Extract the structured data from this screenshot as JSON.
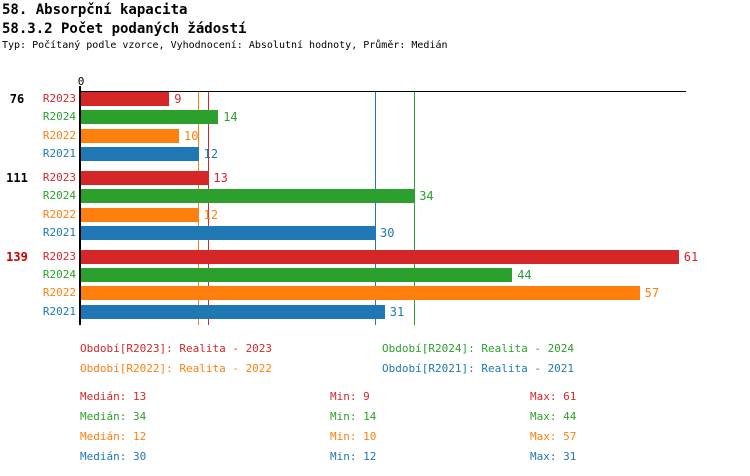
{
  "header": {
    "title1": "58. Absorpční kapacita",
    "title2": "58.3.2 Počet podaných žádostí",
    "subtitle": "Typ: Počítaný podle vzorce, Vyhodnocení: Absolutní hodnoty, Průměr: Medián"
  },
  "chart_data": {
    "type": "bar",
    "orientation": "horizontal",
    "title": "58.3.2 Počet podaných žádostí",
    "xlabel": "",
    "ylabel": "",
    "xlim": [
      0,
      62
    ],
    "axis_zero_label": "0",
    "grid": false,
    "series_order": [
      "R2023",
      "R2024",
      "R2022",
      "R2021"
    ],
    "series_colors": {
      "R2023": "#d62728",
      "R2024": "#2ca02c",
      "R2022": "#ff7f0e",
      "R2021": "#1f77b4"
    },
    "groups": [
      {
        "label": "76",
        "label_color": "#000000",
        "values": [
          9,
          14,
          10,
          12
        ]
      },
      {
        "label": "111",
        "label_color": "#000000",
        "values": [
          13,
          34,
          12,
          30
        ]
      },
      {
        "label": "139",
        "label_color": "#cc0000",
        "values": [
          61,
          44,
          57,
          31
        ]
      }
    ],
    "median_lines": [
      {
        "series": "R2022",
        "value": 12,
        "color": "#ff7f0e"
      },
      {
        "series": "R2023",
        "value": 13,
        "color": "#d62728"
      },
      {
        "series": "R2021",
        "value": 30,
        "color": "#1f77b4"
      },
      {
        "series": "R2024",
        "value": 34,
        "color": "#2ca02c"
      }
    ]
  },
  "legend": {
    "items": [
      {
        "label": "Období[R2023]: Realita - 2023",
        "color": "#d62728",
        "row": 0,
        "col": 0
      },
      {
        "label": "Období[R2024]: Realita - 2024",
        "color": "#2ca02c",
        "row": 0,
        "col": 1
      },
      {
        "label": "Období[R2022]: Realita - 2022",
        "color": "#ff7f0e",
        "row": 1,
        "col": 0
      },
      {
        "label": "Období[R2021]: Realita - 2021",
        "color": "#1f77b4",
        "row": 1,
        "col": 1
      }
    ]
  },
  "stats": {
    "median_prefix": "Medián",
    "min_prefix": "Min",
    "max_prefix": "Max",
    "rows": [
      {
        "series": "R2023",
        "color": "#d62728",
        "median": 13,
        "min": 9,
        "max": 61
      },
      {
        "series": "R2024",
        "color": "#2ca02c",
        "median": 34,
        "min": 14,
        "max": 44
      },
      {
        "series": "R2022",
        "color": "#ff7f0e",
        "median": 12,
        "min": 10,
        "max": 57
      },
      {
        "series": "R2021",
        "color": "#1f77b4",
        "median": 30,
        "min": 12,
        "max": 31
      }
    ]
  }
}
